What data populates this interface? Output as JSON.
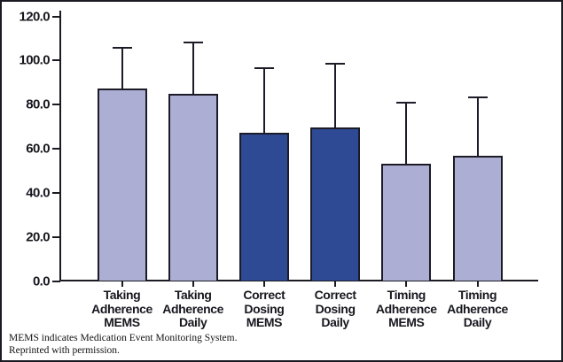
{
  "chart_data": {
    "type": "bar",
    "title": "",
    "xlabel": "",
    "ylabel": "",
    "ylim": [
      0,
      120
    ],
    "ytick_values": [
      120,
      100,
      80,
      60,
      40,
      20,
      0
    ],
    "ytick_labels": [
      "120.0",
      "100.0",
      "80.0",
      "60.0",
      "40.0",
      "20.0",
      "0.0"
    ],
    "grid": "off",
    "legend": "none",
    "categories": [
      "Taking Adherence MEMS",
      "Taking Adherence Daily",
      "Correct Dosing MEMS",
      "Correct Dosing Daily",
      "Timing Adherence MEMS",
      "Timing Adherence Daily"
    ],
    "category_label_lines": [
      [
        "Taking",
        "Adherence",
        "MEMS"
      ],
      [
        "Taking",
        "Adherence",
        "Daily"
      ],
      [
        "Correct",
        "Dosing",
        "MEMS"
      ],
      [
        "Correct",
        "Dosing",
        "Daily"
      ],
      [
        "Timing",
        "Adherence",
        "MEMS"
      ],
      [
        "Timing",
        "Adherence",
        "Daily"
      ]
    ],
    "values": [
      87.4,
      84.9,
      67.2,
      69.7,
      53.1,
      56.7
    ],
    "error_upper": [
      105.7,
      108.1,
      96.5,
      98.5,
      80.8,
      83.3
    ],
    "bar_color_keys": [
      "light",
      "light",
      "dark",
      "dark",
      "light",
      "light"
    ],
    "colors": {
      "light": "#acaed3",
      "dark": "#2f4a94",
      "outline": "#1c1c28",
      "axis": "#1a1a22",
      "text": "#17171f"
    }
  },
  "footnote": {
    "line1": "MEMS indicates Medication Event Monitoring System.",
    "line2": "Reprinted with permission."
  }
}
